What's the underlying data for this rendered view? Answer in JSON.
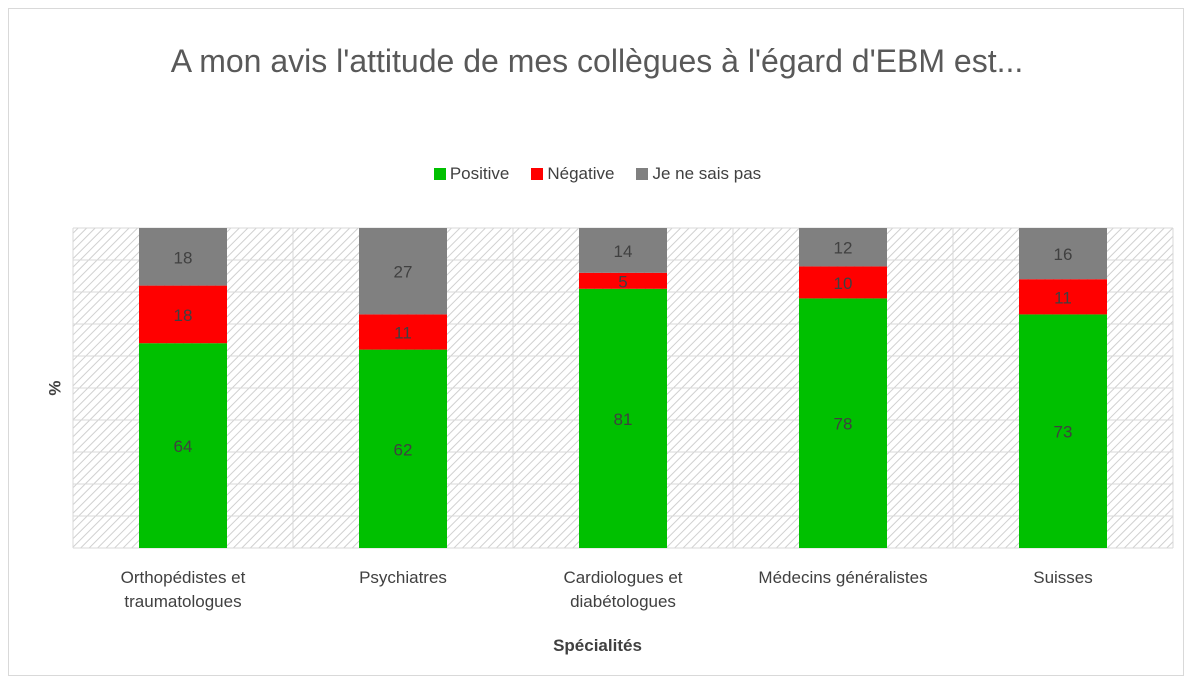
{
  "chart_data": {
    "type": "stacked_bar",
    "title": "A mon avis l'attitude de mes collègues à l'égard d'EBM est...",
    "x_label": "Spécialités",
    "y_label": "%",
    "categories": [
      "Orthopédistes et traumatologues",
      "Psychiatres",
      "Cardiologues et diabétologues",
      "Médecins généralistes",
      "Suisses"
    ],
    "series": [
      {
        "name": "Positive",
        "color": "#00c000",
        "values": [
          64,
          62,
          81,
          78,
          73
        ]
      },
      {
        "name": "Négative",
        "color": "#ff0000",
        "values": [
          18,
          11,
          5,
          10,
          11
        ]
      },
      {
        "name": "Je ne sais pas",
        "color": "#808080",
        "values": [
          18,
          27,
          14,
          12,
          16
        ]
      }
    ],
    "ylim": [
      0,
      100
    ],
    "yticks": [
      0,
      10,
      20,
      30,
      40,
      50,
      60,
      70,
      80,
      90,
      100
    ],
    "grid": true,
    "legend": "top"
  }
}
